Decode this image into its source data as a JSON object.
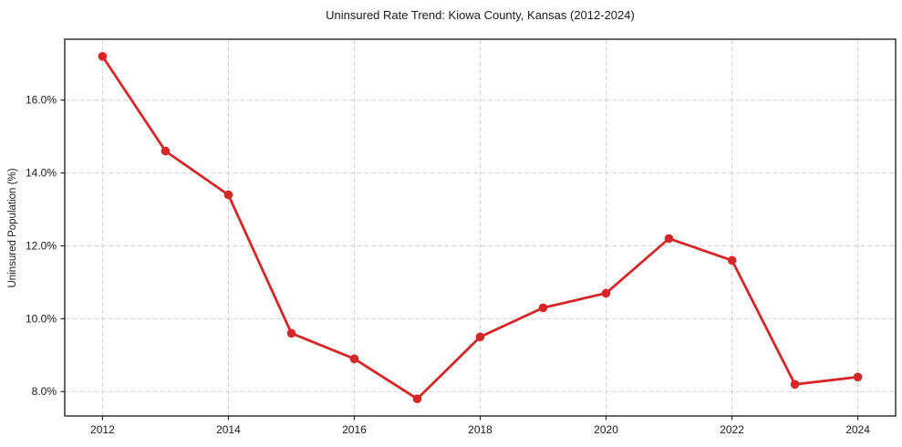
{
  "figure": {
    "title": "Uninsured Rate Trend: Kiowa County, Kansas (2012-2024)",
    "ylabel": "Uninsured Population (%)"
  },
  "chart_data": {
    "type": "line",
    "title": "Uninsured Rate Trend: Kiowa County, Kansas (2012-2024)",
    "xlabel": "",
    "ylabel": "Uninsured Population (%)",
    "x": [
      2012,
      2013,
      2014,
      2015,
      2016,
      2017,
      2018,
      2019,
      2020,
      2021,
      2022,
      2023,
      2024
    ],
    "series": [
      {
        "name": "Uninsured rate",
        "values": [
          17.2,
          14.6,
          13.4,
          9.6,
          8.9,
          7.8,
          9.5,
          10.3,
          10.7,
          12.2,
          11.6,
          8.2,
          8.4
        ]
      }
    ],
    "xticks": {
      "values": [
        2012,
        2014,
        2016,
        2018,
        2020,
        2022,
        2024
      ],
      "labels": [
        "2012",
        "2014",
        "2016",
        "2018",
        "2020",
        "2022",
        "2024"
      ]
    },
    "yticks": {
      "values": [
        8,
        10,
        12,
        14,
        16
      ],
      "labels": [
        "8.0%",
        "10.0%",
        "12.0%",
        "14.0%",
        "16.0%"
      ]
    },
    "xlim": [
      2011.4,
      2024.6
    ],
    "ylim": [
      7.33,
      17.67
    ],
    "grid": true,
    "grid_style": "dashed",
    "legend": "none",
    "colors": {
      "line": "#d62728",
      "marker": "#d62728",
      "grid": "#d2d2d2",
      "spine": "#262626",
      "text": "#1a1a1a"
    }
  }
}
